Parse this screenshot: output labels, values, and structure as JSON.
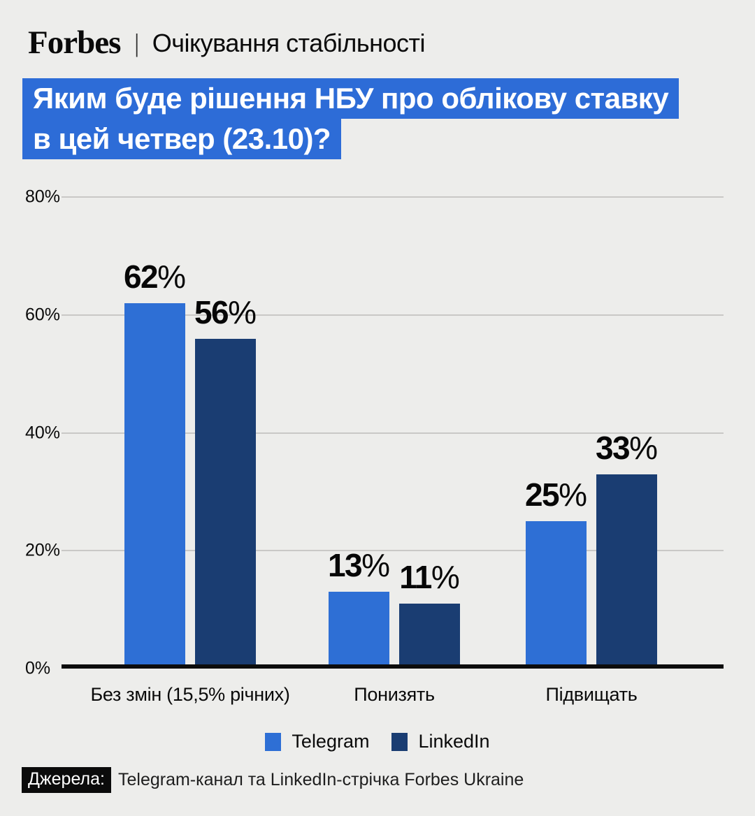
{
  "header": {
    "brand": "Forbes",
    "separator": "|",
    "tagline": "Очікування стабільності"
  },
  "title": {
    "line1": "Яким буде рішення НБУ про облікову ставку",
    "line2": "в цей четвер (23.10)?"
  },
  "chart_data": {
    "type": "bar",
    "title": "Яким буде рішення НБУ про облікову ставку в цей четвер (23.10)?",
    "categories": [
      "Без змін (15,5% річних)",
      "Понизять",
      "Підвищать"
    ],
    "series": [
      {
        "name": "Telegram",
        "color": "#2E6FD5",
        "values": [
          62,
          13,
          25
        ]
      },
      {
        "name": "LinkedIn",
        "color": "#1A3D72",
        "values": [
          56,
          11,
          33
        ]
      }
    ],
    "value_suffix": "%",
    "ylim": [
      0,
      80
    ],
    "yticks": [
      0,
      20,
      40,
      60,
      80
    ],
    "ytick_labels": [
      "0%",
      "20%",
      "40%",
      "60%",
      "80%"
    ],
    "grid": true,
    "legend_position": "bottom"
  },
  "footer": {
    "label": "Джерела:",
    "text": "Telegram-канал та LinkedIn-стрічка Forbes Ukraine"
  },
  "colors": {
    "background": "#EDEDEB",
    "title_background": "#2D6CD7",
    "telegram_blue": "#2E6FD5",
    "linkedin_navy": "#1A3D72",
    "gridline": "#C9C8C6",
    "baseline": "#0D0D0D",
    "text": "#0A0A0A"
  }
}
